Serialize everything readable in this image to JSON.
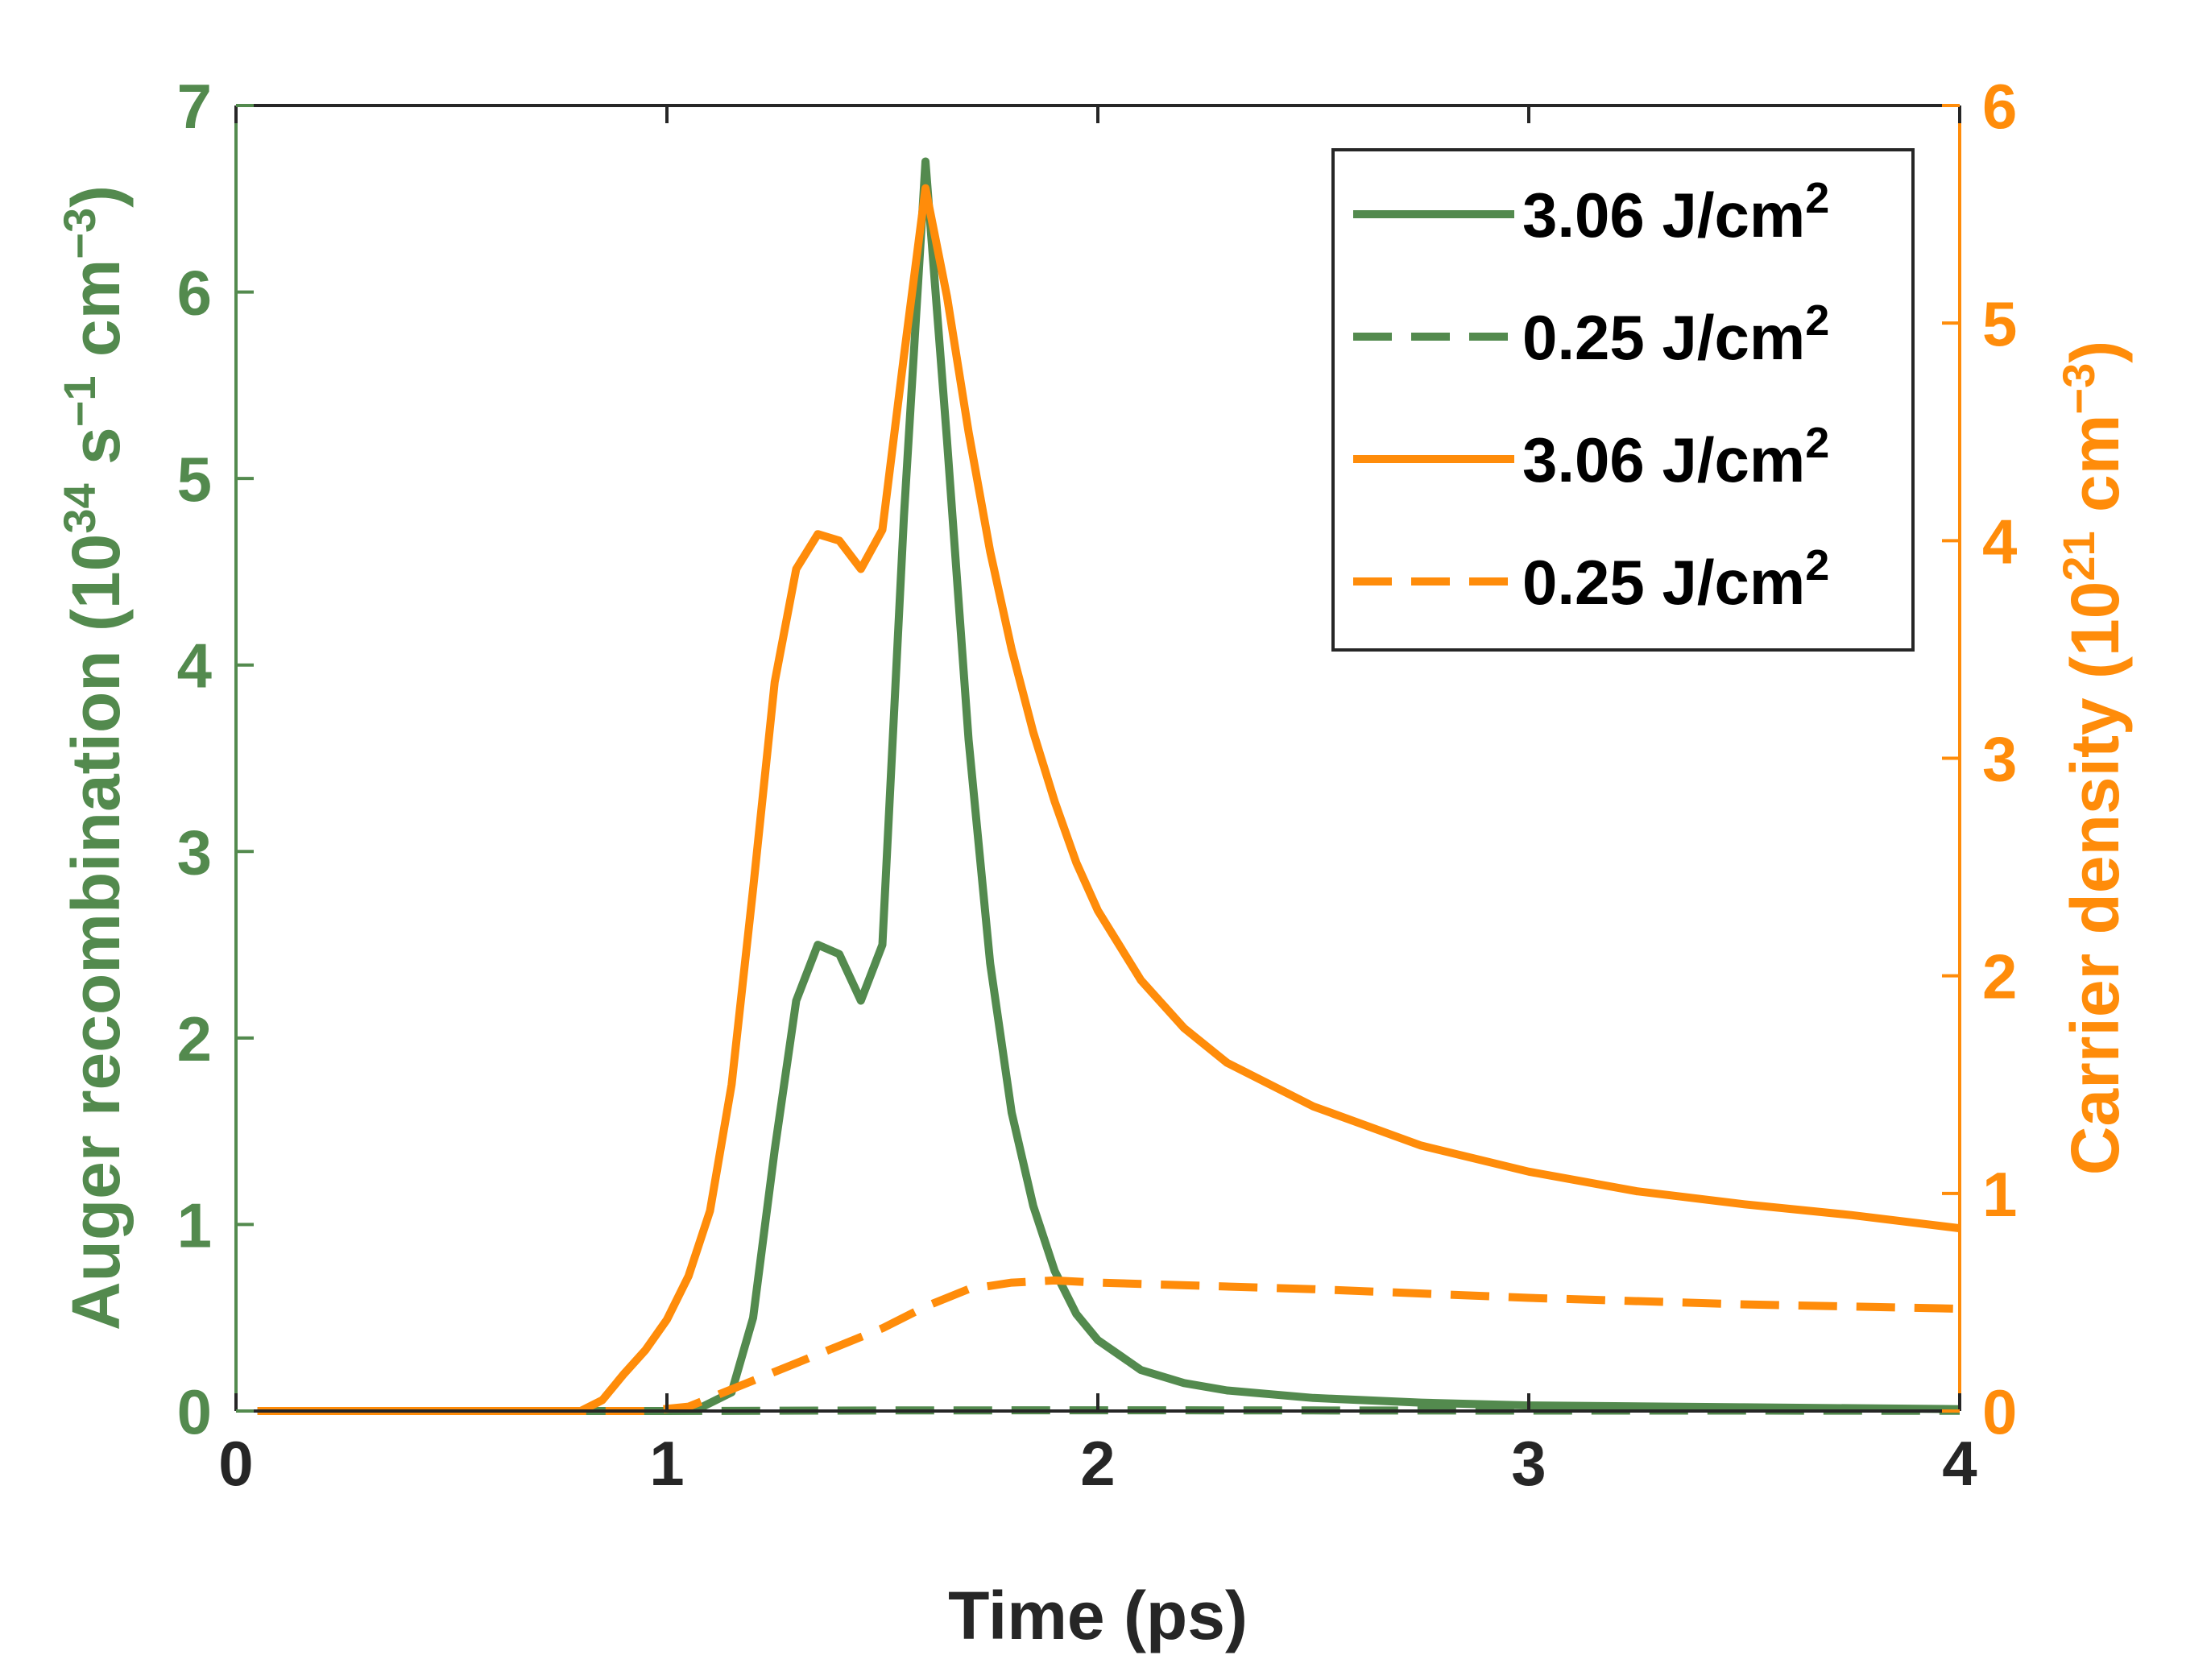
{
  "chart_data": {
    "type": "line",
    "xlabel": "Time (ps)",
    "ylabel_left": {
      "pre": "Auger recombination (10",
      "exp1": "34",
      "mid1": " s",
      "exp2": "−1",
      "mid2": " cm",
      "exp3": "−3",
      "post": ")"
    },
    "ylabel_right": {
      "pre": "Carrier density (10",
      "exp1": "21",
      "mid": " cm",
      "exp2": "−3",
      "post": ")"
    },
    "xlim": [
      0,
      4
    ],
    "ylim_left": [
      0,
      7
    ],
    "ylim_right": [
      0,
      6
    ],
    "x_ticks": [
      "0",
      "1",
      "2",
      "3",
      "4"
    ],
    "y_left_ticks": [
      "0",
      "1",
      "2",
      "3",
      "4",
      "5",
      "6",
      "7"
    ],
    "y_right_ticks": [
      "0",
      "1",
      "2",
      "3",
      "4",
      "5",
      "6"
    ],
    "grid": false,
    "legend_position": "top-right",
    "colors": {
      "green": "#538a4e",
      "orange": "#ff8c0a",
      "axis": "#262626"
    },
    "series": [
      {
        "name": "3.06 J/cm",
        "name_sup": "2",
        "axis": "left",
        "color": "#538a4e",
        "dash": "solid",
        "x": [
          0.05,
          1.0,
          1.08,
          1.15,
          1.2,
          1.25,
          1.3,
          1.35,
          1.4,
          1.45,
          1.5,
          1.55,
          1.6,
          1.65,
          1.7,
          1.75,
          1.8,
          1.85,
          1.9,
          1.95,
          2.0,
          2.1,
          2.2,
          2.3,
          2.5,
          2.75,
          3.0,
          3.5,
          4.0
        ],
        "y": [
          0,
          0,
          0.02,
          0.1,
          0.5,
          1.4,
          2.2,
          2.5,
          2.45,
          2.2,
          2.5,
          4.8,
          6.7,
          5.2,
          3.6,
          2.4,
          1.6,
          1.1,
          0.75,
          0.52,
          0.38,
          0.22,
          0.15,
          0.11,
          0.07,
          0.045,
          0.03,
          0.02,
          0.01
        ]
      },
      {
        "name": "0.25 J/cm",
        "name_sup": "2",
        "axis": "left",
        "color": "#538a4e",
        "dash": "dashed",
        "x": [
          0.05,
          1.0,
          1.5,
          2.0,
          2.5,
          3.0,
          3.5,
          4.0
        ],
        "y": [
          0,
          0,
          0.003,
          0.004,
          0.003,
          0.002,
          0.002,
          0.001
        ]
      },
      {
        "name": "3.06 J/cm",
        "name_sup": "2",
        "axis": "right",
        "color": "#ff8c0a",
        "dash": "solid",
        "x": [
          0.05,
          0.8,
          0.85,
          0.9,
          0.95,
          1.0,
          1.05,
          1.1,
          1.15,
          1.2,
          1.25,
          1.3,
          1.35,
          1.4,
          1.45,
          1.5,
          1.55,
          1.6,
          1.65,
          1.7,
          1.75,
          1.8,
          1.85,
          1.9,
          1.95,
          2.0,
          2.1,
          2.2,
          2.3,
          2.5,
          2.75,
          3.0,
          3.25,
          3.5,
          3.75,
          4.0
        ],
        "y": [
          0,
          0,
          0.05,
          0.17,
          0.28,
          0.42,
          0.62,
          0.92,
          1.5,
          2.4,
          3.35,
          3.87,
          4.03,
          4.0,
          3.87,
          4.05,
          4.85,
          5.62,
          5.12,
          4.5,
          3.95,
          3.5,
          3.12,
          2.8,
          2.52,
          2.3,
          1.98,
          1.76,
          1.6,
          1.4,
          1.22,
          1.1,
          1.01,
          0.95,
          0.9,
          0.84
        ]
      },
      {
        "name": "0.25 J/cm",
        "name_sup": "2",
        "axis": "right",
        "color": "#ff8c0a",
        "dash": "dashed",
        "x": [
          0.05,
          0.95,
          1.05,
          1.1,
          1.2,
          1.3,
          1.4,
          1.5,
          1.6,
          1.7,
          1.8,
          1.9,
          2.0,
          2.5,
          3.0,
          3.5,
          4.0
        ],
        "y": [
          0,
          0,
          0.02,
          0.06,
          0.14,
          0.22,
          0.3,
          0.38,
          0.48,
          0.56,
          0.59,
          0.6,
          0.59,
          0.56,
          0.52,
          0.49,
          0.47
        ]
      }
    ]
  }
}
